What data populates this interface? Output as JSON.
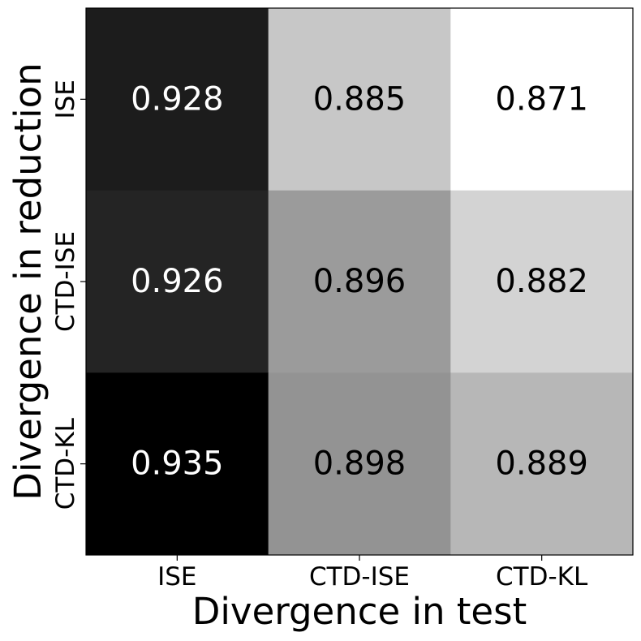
{
  "chart_data": {
    "type": "heatmap",
    "title": "",
    "xlabel": "Divergence in test",
    "ylabel": "Divergence in reduction",
    "x_categories": [
      "ISE",
      "CTD-ISE",
      "CTD-KL"
    ],
    "y_categories": [
      "ISE",
      "CTD-ISE",
      "CTD-KL"
    ],
    "values": [
      [
        0.928,
        0.885,
        0.871
      ],
      [
        0.926,
        0.896,
        0.882
      ],
      [
        0.935,
        0.898,
        0.889
      ]
    ],
    "value_labels": [
      [
        "0.928",
        "0.885",
        "0.871"
      ],
      [
        "0.926",
        "0.896",
        "0.882"
      ],
      [
        "0.935",
        "0.898",
        "0.889"
      ]
    ],
    "colormap": "reversed grayscale (higher value = darker)",
    "color_low": "#ffffff",
    "color_high": "#000000",
    "vmin": 0.871,
    "vmax": 0.935,
    "grid": false,
    "legend": "none"
  }
}
